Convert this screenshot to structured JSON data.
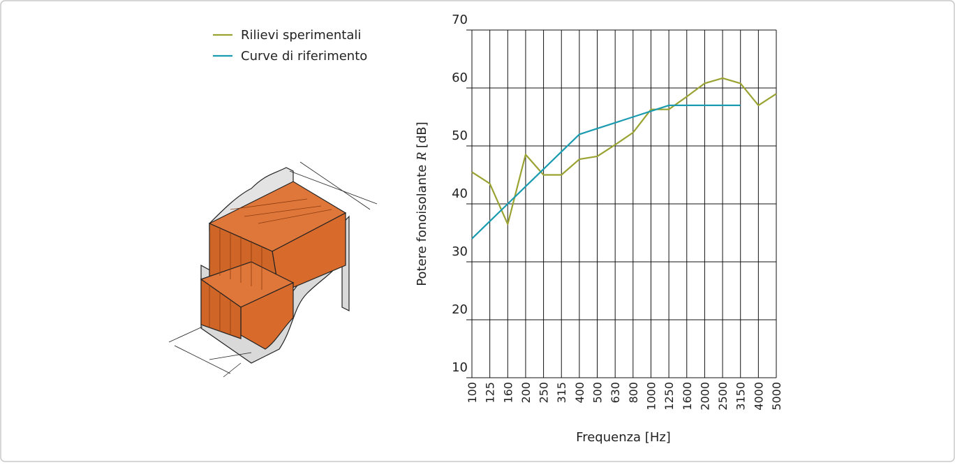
{
  "chart_data": {
    "type": "line",
    "xlabel": "Frequenza [Hz]",
    "ylabel": {
      "before": "Potere fonoisolante ",
      "symbol": "R",
      "after": " [dB]"
    },
    "categories": [
      "100",
      "125",
      "160",
      "200",
      "250",
      "315",
      "400",
      "500",
      "630",
      "800",
      "1000",
      "1250",
      "1600",
      "2000",
      "2500",
      "3150",
      "4000",
      "5000"
    ],
    "series": [
      {
        "name": "Rilievi sperimentali",
        "color": "#9aa332",
        "values": [
          45.5,
          43.5,
          36.5,
          48.5,
          45,
          45,
          47.7,
          48.2,
          50.2,
          52.3,
          56.3,
          56.3,
          58.5,
          60.8,
          61.7,
          60.8,
          57,
          59
        ]
      },
      {
        "name": "Curve di riferimento",
        "color": "#1a9bb0",
        "values": [
          34,
          37,
          40,
          43,
          46,
          49,
          52,
          53,
          54,
          55,
          56,
          57,
          57,
          57,
          57,
          57,
          null,
          null
        ]
      }
    ],
    "ylim": [
      10,
      70
    ],
    "yticks": [
      10,
      20,
      30,
      40,
      50,
      60,
      70
    ],
    "grid": true
  }
}
